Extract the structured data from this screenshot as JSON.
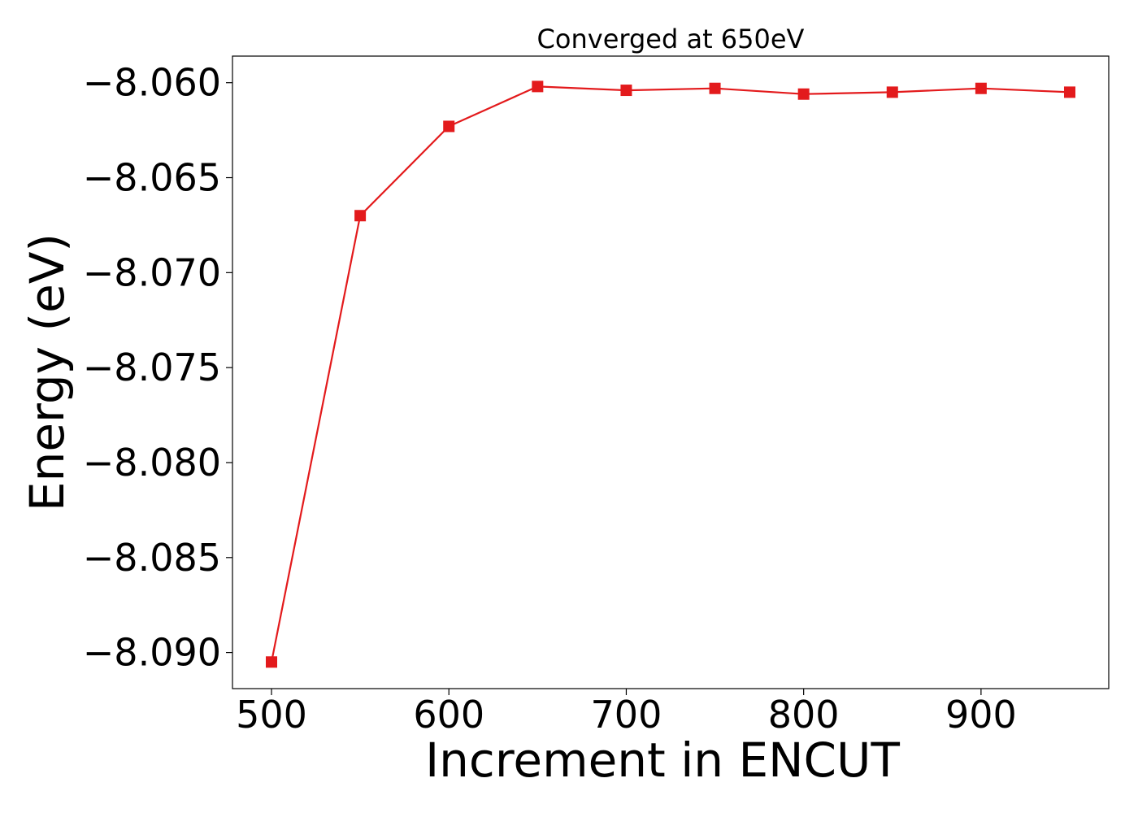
{
  "chart_data": {
    "type": "line",
    "title": "Converged at 650eV",
    "xlabel": "Increment in ENCUT",
    "ylabel": "Energy (eV)",
    "x": [
      500,
      550,
      600,
      650,
      700,
      750,
      800,
      850,
      900,
      950
    ],
    "series": [
      {
        "color": "#e31a1c",
        "marker": "square",
        "values": [
          -8.0905,
          -8.067,
          -8.0623,
          -8.0602,
          -8.0604,
          -8.0603,
          -8.0606,
          -8.0605,
          -8.0603,
          -8.0605
        ]
      }
    ],
    "xlim": [
      478,
      972
    ],
    "ylim": [
      -8.0919,
      -8.0586
    ],
    "xticks": [
      500,
      600,
      700,
      800,
      900
    ],
    "xtick_labels": [
      "500",
      "600",
      "700",
      "800",
      "900"
    ],
    "yticks": [
      -8.06,
      -8.065,
      -8.07,
      -8.075,
      -8.08,
      -8.085,
      -8.09
    ],
    "ytick_labels": [
      "−8.060",
      "−8.065",
      "−8.070",
      "−8.075",
      "−8.080",
      "−8.085",
      "−8.090"
    ],
    "grid": false,
    "legend": "none"
  }
}
